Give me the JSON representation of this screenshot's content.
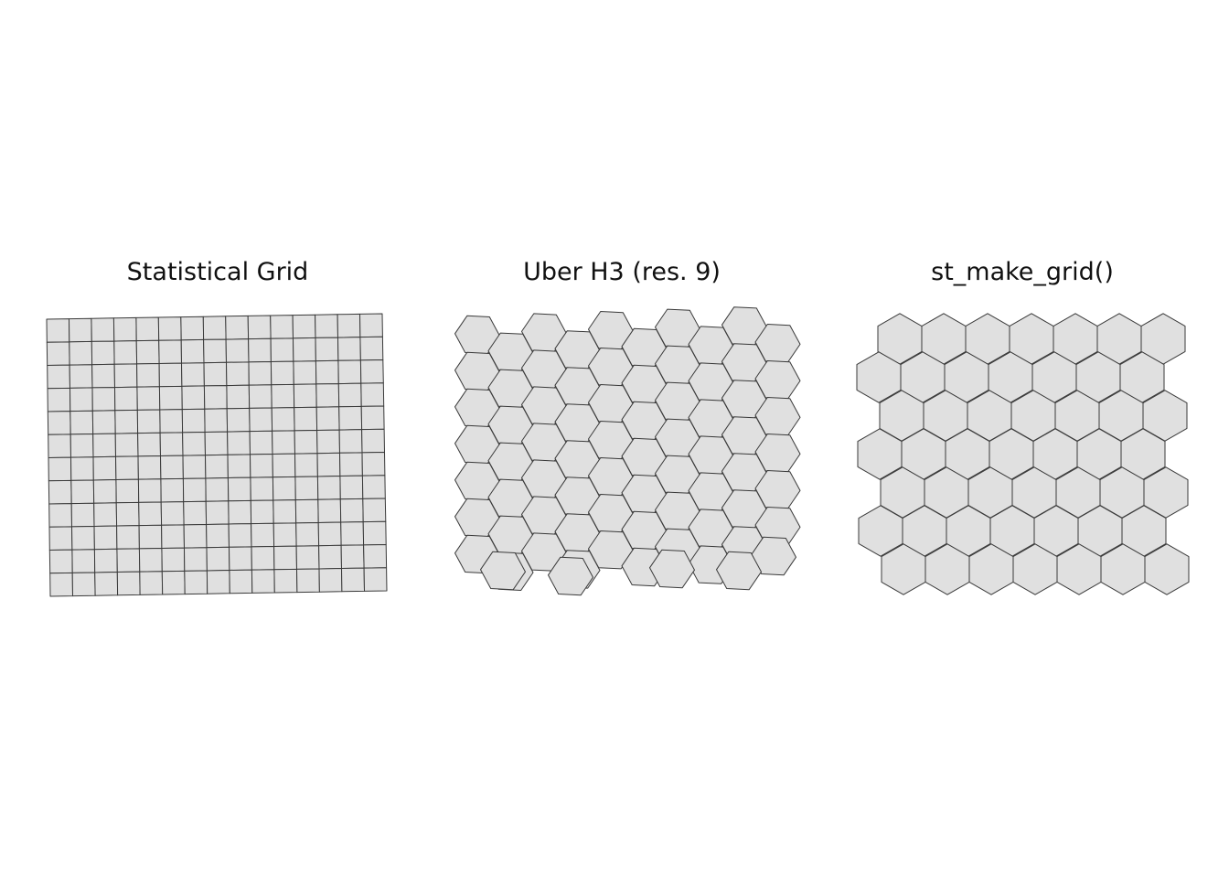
{
  "panels": [
    {
      "title": "Statistical Grid",
      "cell_shape": "square",
      "columns": 15,
      "rows": 12
    },
    {
      "title": "Uber H3 (res. 9)",
      "cell_shape": "hexagon"
    },
    {
      "title": "st_make_grid()",
      "cell_shape": "hexagon"
    }
  ],
  "colors": {
    "cell_fill": "#e0e0e0",
    "cell_stroke": "#3a3a3a",
    "background": "#ffffff",
    "title_text": "#111111"
  }
}
